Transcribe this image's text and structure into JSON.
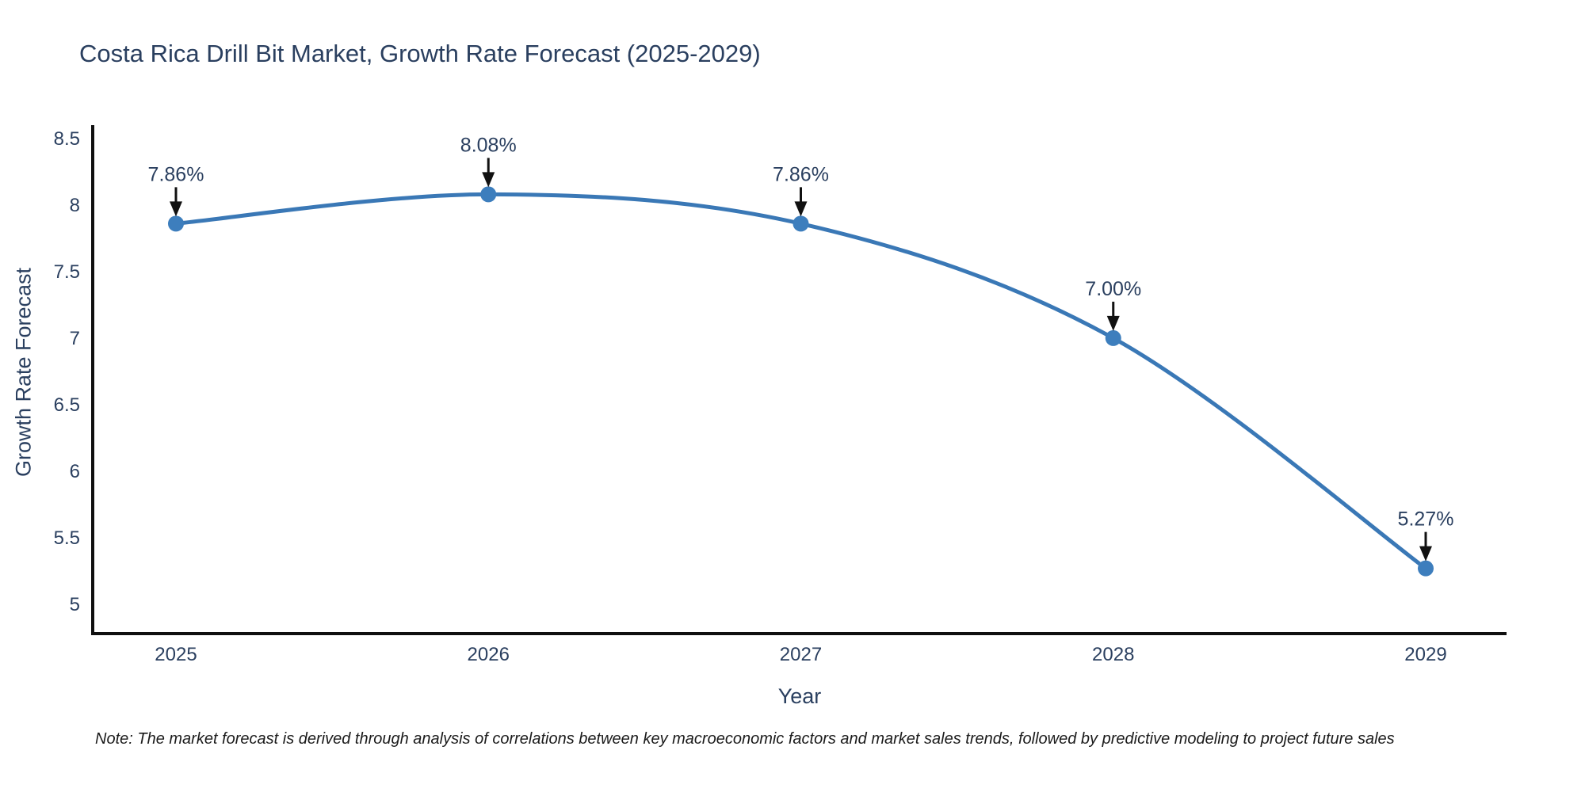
{
  "title": "Costa Rica Drill Bit Market, Growth Rate Forecast (2025-2029)",
  "note": "Note: The market forecast is derived through analysis of correlations between key macroeconomic factors and market sales trends, followed by predictive modeling to project future sales",
  "colors": {
    "line": "#3a78b6",
    "marker": "#3d7ebd",
    "text": "#2a3f5f",
    "axis_line": "#0f0f0f",
    "arrow": "#111111",
    "background": "#ffffff"
  },
  "chart_data": {
    "type": "line",
    "title": "Costa Rica Drill Bit Market, Growth Rate Forecast (2025-2029)",
    "x": [
      2025,
      2026,
      2027,
      2028,
      2029
    ],
    "series": [
      {
        "name": "Growth Rate Forecast",
        "values": [
          7.86,
          8.08,
          7.86,
          7.0,
          5.27
        ]
      }
    ],
    "point_labels": [
      "7.86%",
      "8.08%",
      "7.86%",
      "7.00%",
      "5.27%"
    ],
    "xlabel": "Year",
    "ylabel": "Growth Rate Forecast",
    "yticks": [
      5,
      5.5,
      6,
      6.5,
      7,
      7.5,
      8,
      8.5
    ],
    "ylim": [
      4.78,
      8.6
    ],
    "grid": false,
    "legend": false,
    "line_shape": "spline",
    "annotation_style": "arrow-down"
  }
}
